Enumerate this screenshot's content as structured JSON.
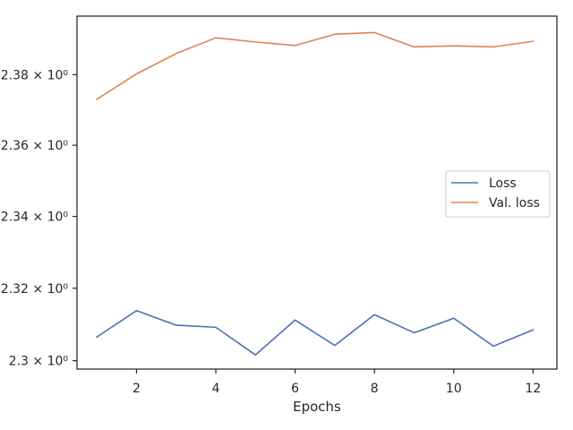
{
  "chart_data": {
    "type": "line",
    "title": "",
    "xlabel": "Epochs",
    "ylabel": "",
    "x": [
      1,
      2,
      3,
      4,
      5,
      6,
      7,
      8,
      9,
      10,
      11,
      12
    ],
    "xlim": [
      0.5,
      12.6
    ],
    "ylim": [
      2.2977,
      2.3967
    ],
    "x_ticks": [
      2,
      4,
      6,
      8,
      10,
      12
    ],
    "x_tick_labels": [
      "2",
      "4",
      "6",
      "8",
      "10",
      "12"
    ],
    "y_ticks": [
      2.3,
      2.32,
      2.34,
      2.36,
      2.38
    ],
    "y_tick_labels": [
      "2.3 × 10⁰",
      "2.32 × 10⁰",
      "2.34 × 10⁰",
      "2.36 × 10⁰",
      "2.38 × 10⁰"
    ],
    "y_scale": "log",
    "grid": false,
    "legend_position": "center-right",
    "series": [
      {
        "name": "Loss",
        "color": "#4c72b0",
        "values": [
          2.3065,
          2.3138,
          2.3098,
          2.3092,
          2.3016,
          2.3112,
          2.3042,
          2.3127,
          2.3077,
          2.3117,
          2.304,
          2.3085
        ]
      },
      {
        "name": "Val. loss",
        "color": "#dd8452",
        "values": [
          2.373,
          2.3802,
          2.386,
          2.3905,
          2.3893,
          2.3883,
          2.3915,
          2.392,
          2.3879,
          2.3882,
          2.3879,
          2.3895
        ]
      }
    ]
  }
}
